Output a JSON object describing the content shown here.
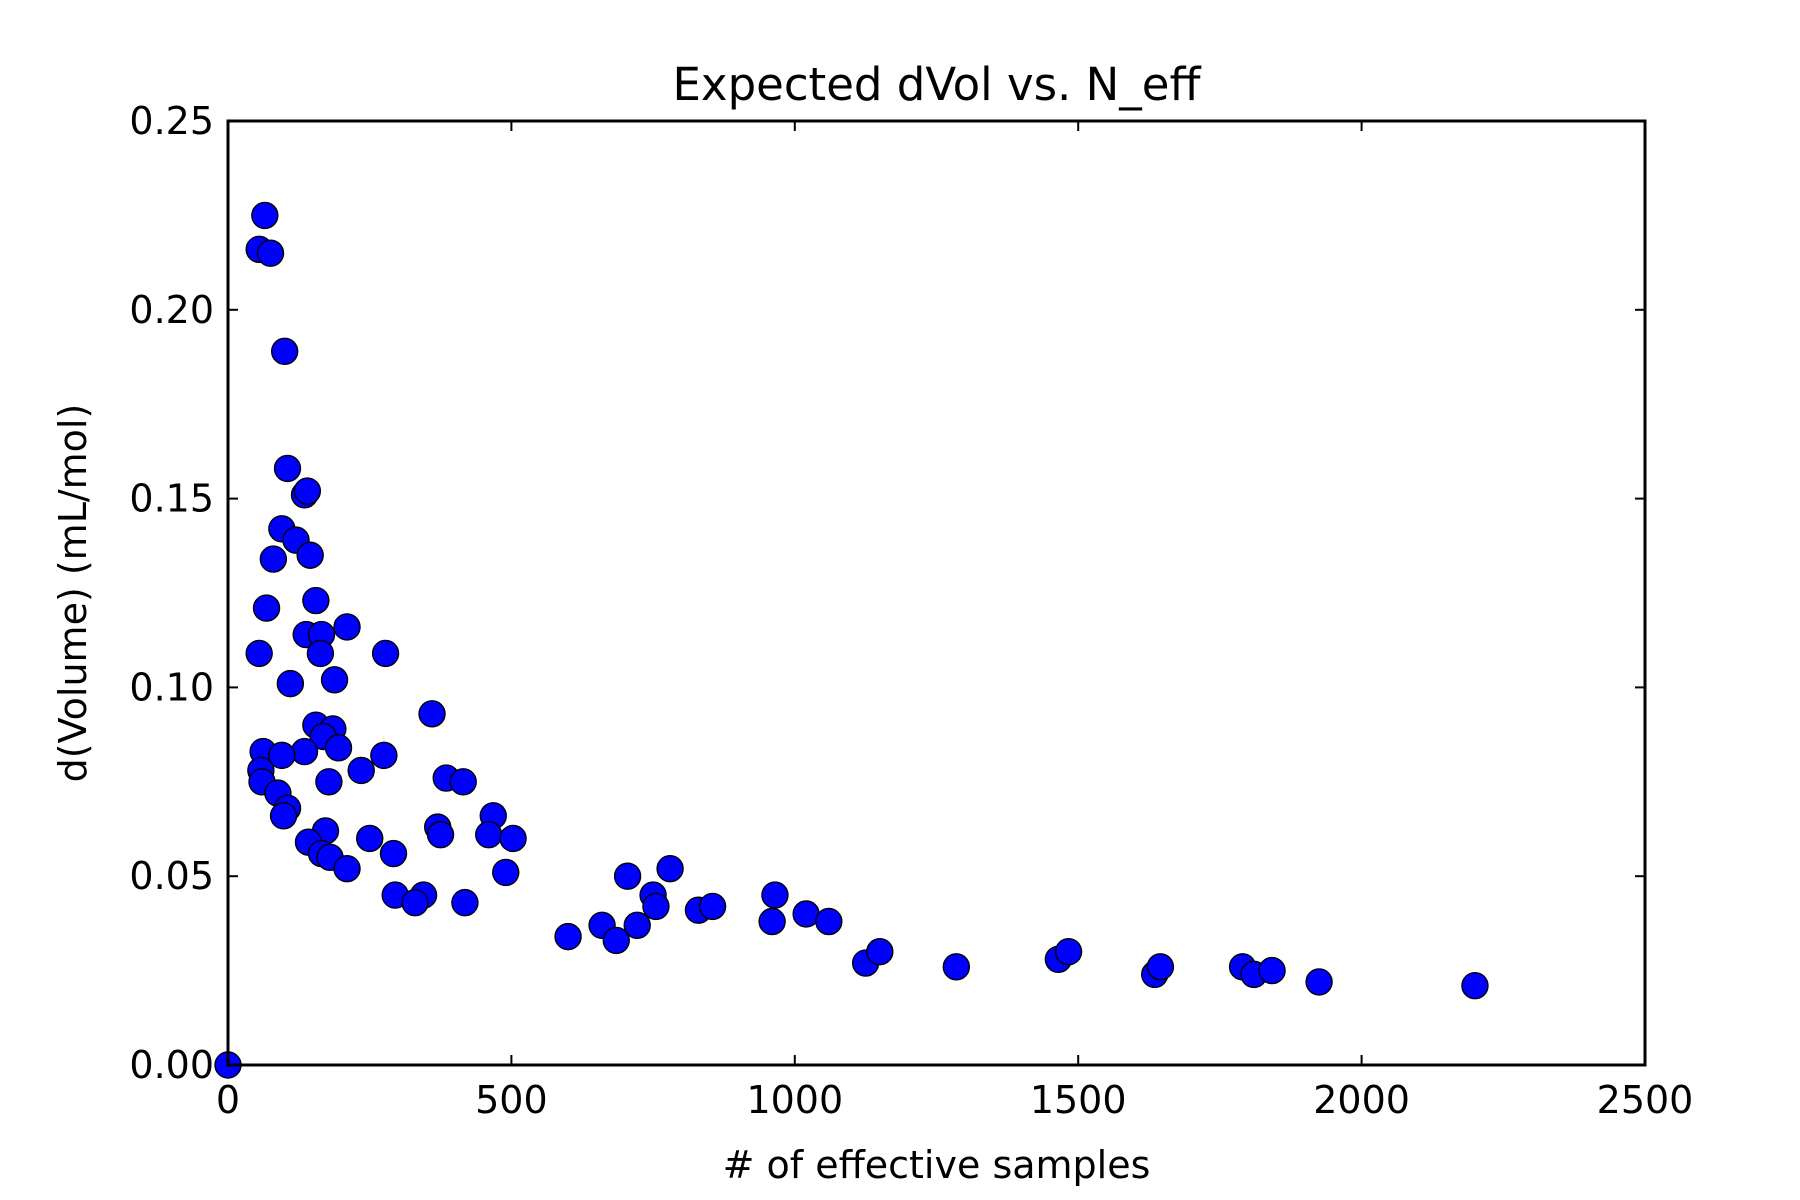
{
  "chart_data": {
    "type": "scatter",
    "title": "Expected dVol vs. N_eff",
    "xlabel": "# of effective samples",
    "ylabel": "d(Volume) (mL/mol)",
    "xlim": [
      0,
      2500
    ],
    "ylim": [
      0,
      0.25
    ],
    "xticks": [
      "0",
      "500",
      "1000",
      "1500",
      "2000",
      "2500"
    ],
    "yticks": [
      "0.00",
      "0.05",
      "0.10",
      "0.15",
      "0.20",
      "0.25"
    ],
    "grid": false,
    "marker_color": "#0000ff",
    "points": [
      [
        0,
        0.0
      ],
      [
        55,
        0.216
      ],
      [
        65,
        0.225
      ],
      [
        75,
        0.215
      ],
      [
        100,
        0.189
      ],
      [
        105,
        0.158
      ],
      [
        135,
        0.151
      ],
      [
        140,
        0.152
      ],
      [
        95,
        0.142
      ],
      [
        120,
        0.139
      ],
      [
        145,
        0.135
      ],
      [
        80,
        0.134
      ],
      [
        155,
        0.123
      ],
      [
        68,
        0.121
      ],
      [
        210,
        0.116
      ],
      [
        138,
        0.114
      ],
      [
        165,
        0.114
      ],
      [
        55,
        0.109
      ],
      [
        163,
        0.109
      ],
      [
        278,
        0.109
      ],
      [
        188,
        0.102
      ],
      [
        110,
        0.101
      ],
      [
        360,
        0.093
      ],
      [
        155,
        0.09
      ],
      [
        185,
        0.089
      ],
      [
        168,
        0.087
      ],
      [
        195,
        0.084
      ],
      [
        135,
        0.083
      ],
      [
        62,
        0.083
      ],
      [
        95,
        0.082
      ],
      [
        275,
        0.082
      ],
      [
        58,
        0.078
      ],
      [
        235,
        0.078
      ],
      [
        385,
        0.076
      ],
      [
        415,
        0.075
      ],
      [
        60,
        0.075
      ],
      [
        178,
        0.075
      ],
      [
        88,
        0.072
      ],
      [
        105,
        0.068
      ],
      [
        98,
        0.066
      ],
      [
        468,
        0.066
      ],
      [
        370,
        0.063
      ],
      [
        172,
        0.062
      ],
      [
        375,
        0.061
      ],
      [
        460,
        0.061
      ],
      [
        250,
        0.06
      ],
      [
        503,
        0.06
      ],
      [
        142,
        0.059
      ],
      [
        292,
        0.056
      ],
      [
        165,
        0.056
      ],
      [
        180,
        0.055
      ],
      [
        210,
        0.052
      ],
      [
        490,
        0.051
      ],
      [
        295,
        0.045
      ],
      [
        345,
        0.045
      ],
      [
        330,
        0.043
      ],
      [
        418,
        0.043
      ],
      [
        705,
        0.05
      ],
      [
        780,
        0.052
      ],
      [
        750,
        0.045
      ],
      [
        755,
        0.042
      ],
      [
        722,
        0.037
      ],
      [
        830,
        0.041
      ],
      [
        855,
        0.042
      ],
      [
        600,
        0.034
      ],
      [
        660,
        0.037
      ],
      [
        685,
        0.033
      ],
      [
        965,
        0.045
      ],
      [
        960,
        0.038
      ],
      [
        1020,
        0.04
      ],
      [
        1060,
        0.038
      ],
      [
        1125,
        0.027
      ],
      [
        1150,
        0.03
      ],
      [
        1285,
        0.026
      ],
      [
        1465,
        0.028
      ],
      [
        1483,
        0.03
      ],
      [
        1635,
        0.024
      ],
      [
        1645,
        0.026
      ],
      [
        1790,
        0.026
      ],
      [
        1810,
        0.024
      ],
      [
        1842,
        0.025
      ],
      [
        1925,
        0.022
      ],
      [
        2200,
        0.021
      ]
    ]
  }
}
